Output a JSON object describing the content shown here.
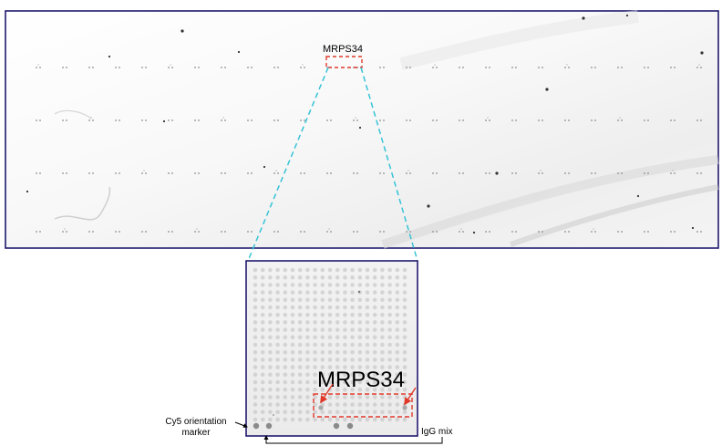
{
  "labels": {
    "top_target": "MRPS34",
    "zoom_target": "MRPS34",
    "orientation_line1": "Cy5 orientation",
    "orientation_line2": "marker",
    "control": "IgG mix"
  },
  "colors": {
    "slide_border": "#1f1a6e",
    "zoom_lines": "#37c3d6",
    "highlight": "#e0392b",
    "spot": "#bdbdbd",
    "spot_control": "#8a8a8a"
  }
}
